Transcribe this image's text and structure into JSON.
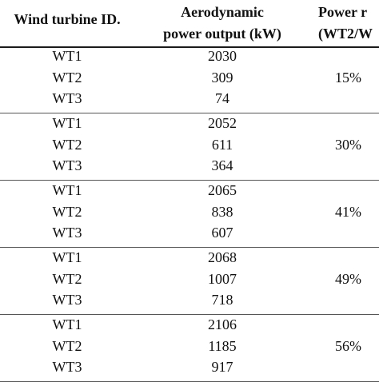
{
  "table": {
    "headers": {
      "turbine_id": "Wind turbine ID.",
      "power_output_line1": "Aerodynamic",
      "power_output_line2": "power output (kW)",
      "power_ratio_line1": "Power r",
      "power_ratio_line2": "(WT2/W"
    },
    "groups": [
      {
        "rows": [
          {
            "id": "WT1",
            "power": "2030"
          },
          {
            "id": "WT2",
            "power": "309"
          },
          {
            "id": "WT3",
            "power": "74"
          }
        ],
        "ratio": "15%"
      },
      {
        "rows": [
          {
            "id": "WT1",
            "power": "2052"
          },
          {
            "id": "WT2",
            "power": "611"
          },
          {
            "id": "WT3",
            "power": "364"
          }
        ],
        "ratio": "30%"
      },
      {
        "rows": [
          {
            "id": "WT1",
            "power": "2065"
          },
          {
            "id": "WT2",
            "power": "838"
          },
          {
            "id": "WT3",
            "power": "607"
          }
        ],
        "ratio": "41%"
      },
      {
        "rows": [
          {
            "id": "WT1",
            "power": "2068"
          },
          {
            "id": "WT2",
            "power": "1007"
          },
          {
            "id": "WT3",
            "power": "718"
          }
        ],
        "ratio": "49%"
      },
      {
        "rows": [
          {
            "id": "WT1",
            "power": "2106"
          },
          {
            "id": "WT2",
            "power": "1185"
          },
          {
            "id": "WT3",
            "power": "917"
          }
        ],
        "ratio": "56%"
      }
    ]
  }
}
